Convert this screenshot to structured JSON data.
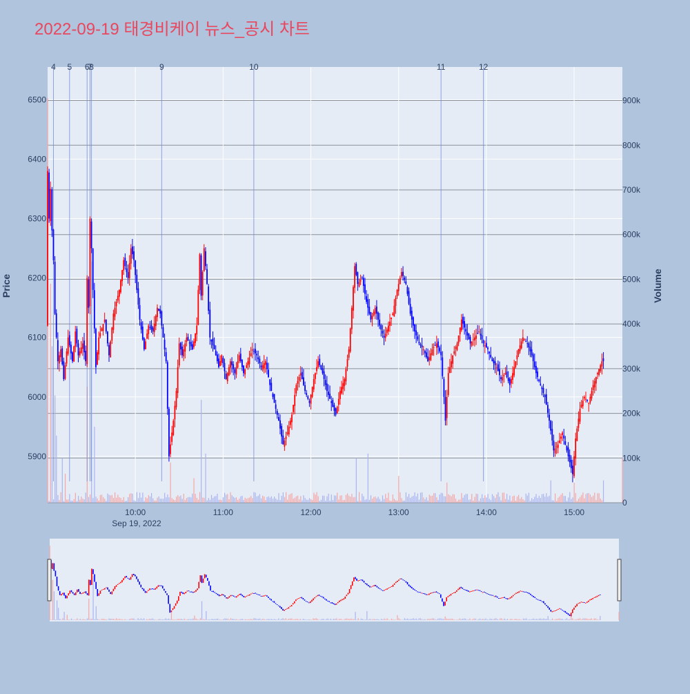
{
  "chart_data": {
    "type": "candlestick",
    "title": "2022-09-19 태경비케이 뉴스_공시 차트",
    "ylabel_price": "Price",
    "ylabel_volume": "Volume",
    "price_ylim": [
      5822,
      6555
    ],
    "volume_ylim": [
      0,
      975000
    ],
    "x_range": [
      "09:00",
      "15:33"
    ],
    "date_label": "Sep 19, 2022",
    "x_ticks": [
      "10:00",
      "11:00",
      "12:00",
      "13:00",
      "14:00",
      "15:00"
    ],
    "price_ticks": [
      5900,
      6000,
      6100,
      6200,
      6300,
      6400,
      6500
    ],
    "volume_ticks": [
      {
        "value": 0,
        "label": "0"
      },
      {
        "value": 100000,
        "label": "100k"
      },
      {
        "value": 200000,
        "label": "200k"
      },
      {
        "value": 300000,
        "label": "300k"
      },
      {
        "value": 400000,
        "label": "400k"
      },
      {
        "value": 500000,
        "label": "500k"
      },
      {
        "value": 600000,
        "label": "600k"
      },
      {
        "value": 700000,
        "label": "700k"
      },
      {
        "value": 800000,
        "label": "800k"
      },
      {
        "value": 900000,
        "label": "900k"
      }
    ],
    "news_markers": [
      {
        "label": "4",
        "time": "09:04"
      },
      {
        "label": "5",
        "time": "09:15"
      },
      {
        "label": "6",
        "time": "09:27"
      },
      {
        "label": "7",
        "time": "09:29"
      },
      {
        "label": "8",
        "time": "09:30"
      },
      {
        "label": "9",
        "time": "10:18"
      },
      {
        "label": "10",
        "time": "11:21"
      },
      {
        "label": "11",
        "time": "13:29"
      },
      {
        "label": "12",
        "time": "13:58"
      }
    ],
    "price_path": [
      [
        "09:00",
        6120
      ],
      [
        "09:01",
        6380
      ],
      [
        "09:02",
        6300
      ],
      [
        "09:03",
        6350
      ],
      [
        "09:04",
        6280
      ],
      [
        "09:05",
        6230
      ],
      [
        "09:06",
        6140
      ],
      [
        "09:08",
        6060
      ],
      [
        "09:10",
        6080
      ],
      [
        "09:12",
        6030
      ],
      [
        "09:15",
        6100
      ],
      [
        "09:18",
        6060
      ],
      [
        "09:20",
        6110
      ],
      [
        "09:22",
        6070
      ],
      [
        "09:25",
        6090
      ],
      [
        "09:27",
        6060
      ],
      [
        "09:28",
        6200
      ],
      [
        "09:29",
        6150
      ],
      [
        "09:30",
        6300
      ],
      [
        "09:31",
        6250
      ],
      [
        "09:32",
        6180
      ],
      [
        "09:34",
        6050
      ],
      [
        "09:36",
        6100
      ],
      [
        "09:40",
        6130
      ],
      [
        "09:43",
        6070
      ],
      [
        "09:46",
        6140
      ],
      [
        "09:50",
        6180
      ],
      [
        "09:53",
        6230
      ],
      [
        "09:56",
        6200
      ],
      [
        "09:58",
        6250
      ],
      [
        "10:00",
        6230
      ],
      [
        "10:02",
        6180
      ],
      [
        "10:04",
        6130
      ],
      [
        "10:07",
        6080
      ],
      [
        "10:10",
        6120
      ],
      [
        "10:13",
        6110
      ],
      [
        "10:16",
        6150
      ],
      [
        "10:18",
        6140
      ],
      [
        "10:20",
        6100
      ],
      [
        "10:22",
        6060
      ],
      [
        "10:23",
        5980
      ],
      [
        "10:24",
        5900
      ],
      [
        "10:25",
        5920
      ],
      [
        "10:27",
        5960
      ],
      [
        "10:29",
        6010
      ],
      [
        "10:31",
        6090
      ],
      [
        "10:33",
        6070
      ],
      [
        "10:36",
        6100
      ],
      [
        "10:40",
        6080
      ],
      [
        "10:43",
        6120
      ],
      [
        "10:45",
        6240
      ],
      [
        "10:46",
        6170
      ],
      [
        "10:48",
        6250
      ],
      [
        "10:50",
        6190
      ],
      [
        "10:52",
        6100
      ],
      [
        "10:55",
        6080
      ],
      [
        "10:58",
        6050
      ],
      [
        "11:00",
        6070
      ],
      [
        "11:03",
        6030
      ],
      [
        "11:06",
        6060
      ],
      [
        "11:09",
        6040
      ],
      [
        "11:12",
        6070
      ],
      [
        "11:15",
        6040
      ],
      [
        "11:18",
        6060
      ],
      [
        "11:21",
        6080
      ],
      [
        "11:24",
        6070
      ],
      [
        "11:27",
        6050
      ],
      [
        "11:30",
        6060
      ],
      [
        "11:33",
        6020
      ],
      [
        "11:36",
        5990
      ],
      [
        "11:39",
        5960
      ],
      [
        "11:42",
        5920
      ],
      [
        "11:45",
        5940
      ],
      [
        "11:48",
        5970
      ],
      [
        "11:51",
        6020
      ],
      [
        "11:54",
        6040
      ],
      [
        "11:57",
        6010
      ],
      [
        "12:00",
        5990
      ],
      [
        "12:03",
        6030
      ],
      [
        "12:06",
        6060
      ],
      [
        "12:09",
        6040
      ],
      [
        "12:12",
        6010
      ],
      [
        "12:15",
        5990
      ],
      [
        "12:18",
        5970
      ],
      [
        "12:21",
        6010
      ],
      [
        "12:24",
        6030
      ],
      [
        "12:27",
        6080
      ],
      [
        "12:29",
        6150
      ],
      [
        "12:31",
        6220
      ],
      [
        "12:33",
        6190
      ],
      [
        "12:36",
        6200
      ],
      [
        "12:39",
        6160
      ],
      [
        "12:42",
        6130
      ],
      [
        "12:45",
        6150
      ],
      [
        "12:48",
        6120
      ],
      [
        "12:51",
        6100
      ],
      [
        "12:54",
        6120
      ],
      [
        "12:57",
        6140
      ],
      [
        "13:00",
        6180
      ],
      [
        "13:03",
        6210
      ],
      [
        "13:06",
        6190
      ],
      [
        "13:09",
        6140
      ],
      [
        "13:12",
        6110
      ],
      [
        "13:15",
        6090
      ],
      [
        "13:18",
        6080
      ],
      [
        "13:21",
        6060
      ],
      [
        "13:24",
        6080
      ],
      [
        "13:27",
        6090
      ],
      [
        "13:30",
        6070
      ],
      [
        "13:32",
        6000
      ],
      [
        "13:33",
        5960
      ],
      [
        "13:35",
        6040
      ],
      [
        "13:38",
        6070
      ],
      [
        "13:41",
        6090
      ],
      [
        "13:44",
        6130
      ],
      [
        "13:47",
        6110
      ],
      [
        "13:50",
        6090
      ],
      [
        "13:53",
        6100
      ],
      [
        "13:56",
        6110
      ],
      [
        "13:59",
        6090
      ],
      [
        "14:02",
        6080
      ],
      [
        "14:05",
        6060
      ],
      [
        "14:08",
        6050
      ],
      [
        "14:11",
        6030
      ],
      [
        "14:14",
        6040
      ],
      [
        "14:17",
        6020
      ],
      [
        "14:20",
        6050
      ],
      [
        "14:23",
        6080
      ],
      [
        "14:26",
        6100
      ],
      [
        "14:29",
        6090
      ],
      [
        "14:32",
        6070
      ],
      [
        "14:35",
        6040
      ],
      [
        "14:38",
        6020
      ],
      [
        "14:41",
        6000
      ],
      [
        "14:44",
        5960
      ],
      [
        "14:47",
        5910
      ],
      [
        "14:50",
        5920
      ],
      [
        "14:53",
        5940
      ],
      [
        "14:56",
        5910
      ],
      [
        "14:59",
        5880
      ],
      [
        "15:00",
        5870
      ],
      [
        "15:02",
        5930
      ],
      [
        "15:05",
        5980
      ],
      [
        "15:08",
        6000
      ],
      [
        "15:11",
        5990
      ],
      [
        "15:14",
        6020
      ],
      [
        "15:17",
        6040
      ],
      [
        "15:20",
        6060
      ]
    ],
    "volume_hint": {
      "base": 12000,
      "spikes": [
        [
          "09:00",
          905000
        ],
        [
          "09:02",
          490000
        ],
        [
          "09:03",
          350000
        ],
        [
          "09:05",
          240000
        ],
        [
          "09:06",
          150000
        ],
        [
          "09:10",
          100000
        ],
        [
          "09:12",
          65000
        ],
        [
          "09:27",
          260000
        ],
        [
          "09:30",
          540000
        ],
        [
          "09:32",
          170000
        ],
        [
          "10:24",
          90000
        ],
        [
          "10:40",
          55000
        ],
        [
          "10:45",
          230000
        ],
        [
          "10:48",
          110000
        ],
        [
          "12:31",
          100000
        ],
        [
          "12:39",
          110000
        ],
        [
          "13:00",
          60000
        ],
        [
          "13:33",
          45000
        ],
        [
          "14:44",
          50000
        ],
        [
          "15:00",
          45000
        ],
        [
          "15:20",
          50000
        ],
        [
          "15:33",
          100000
        ]
      ]
    }
  }
}
